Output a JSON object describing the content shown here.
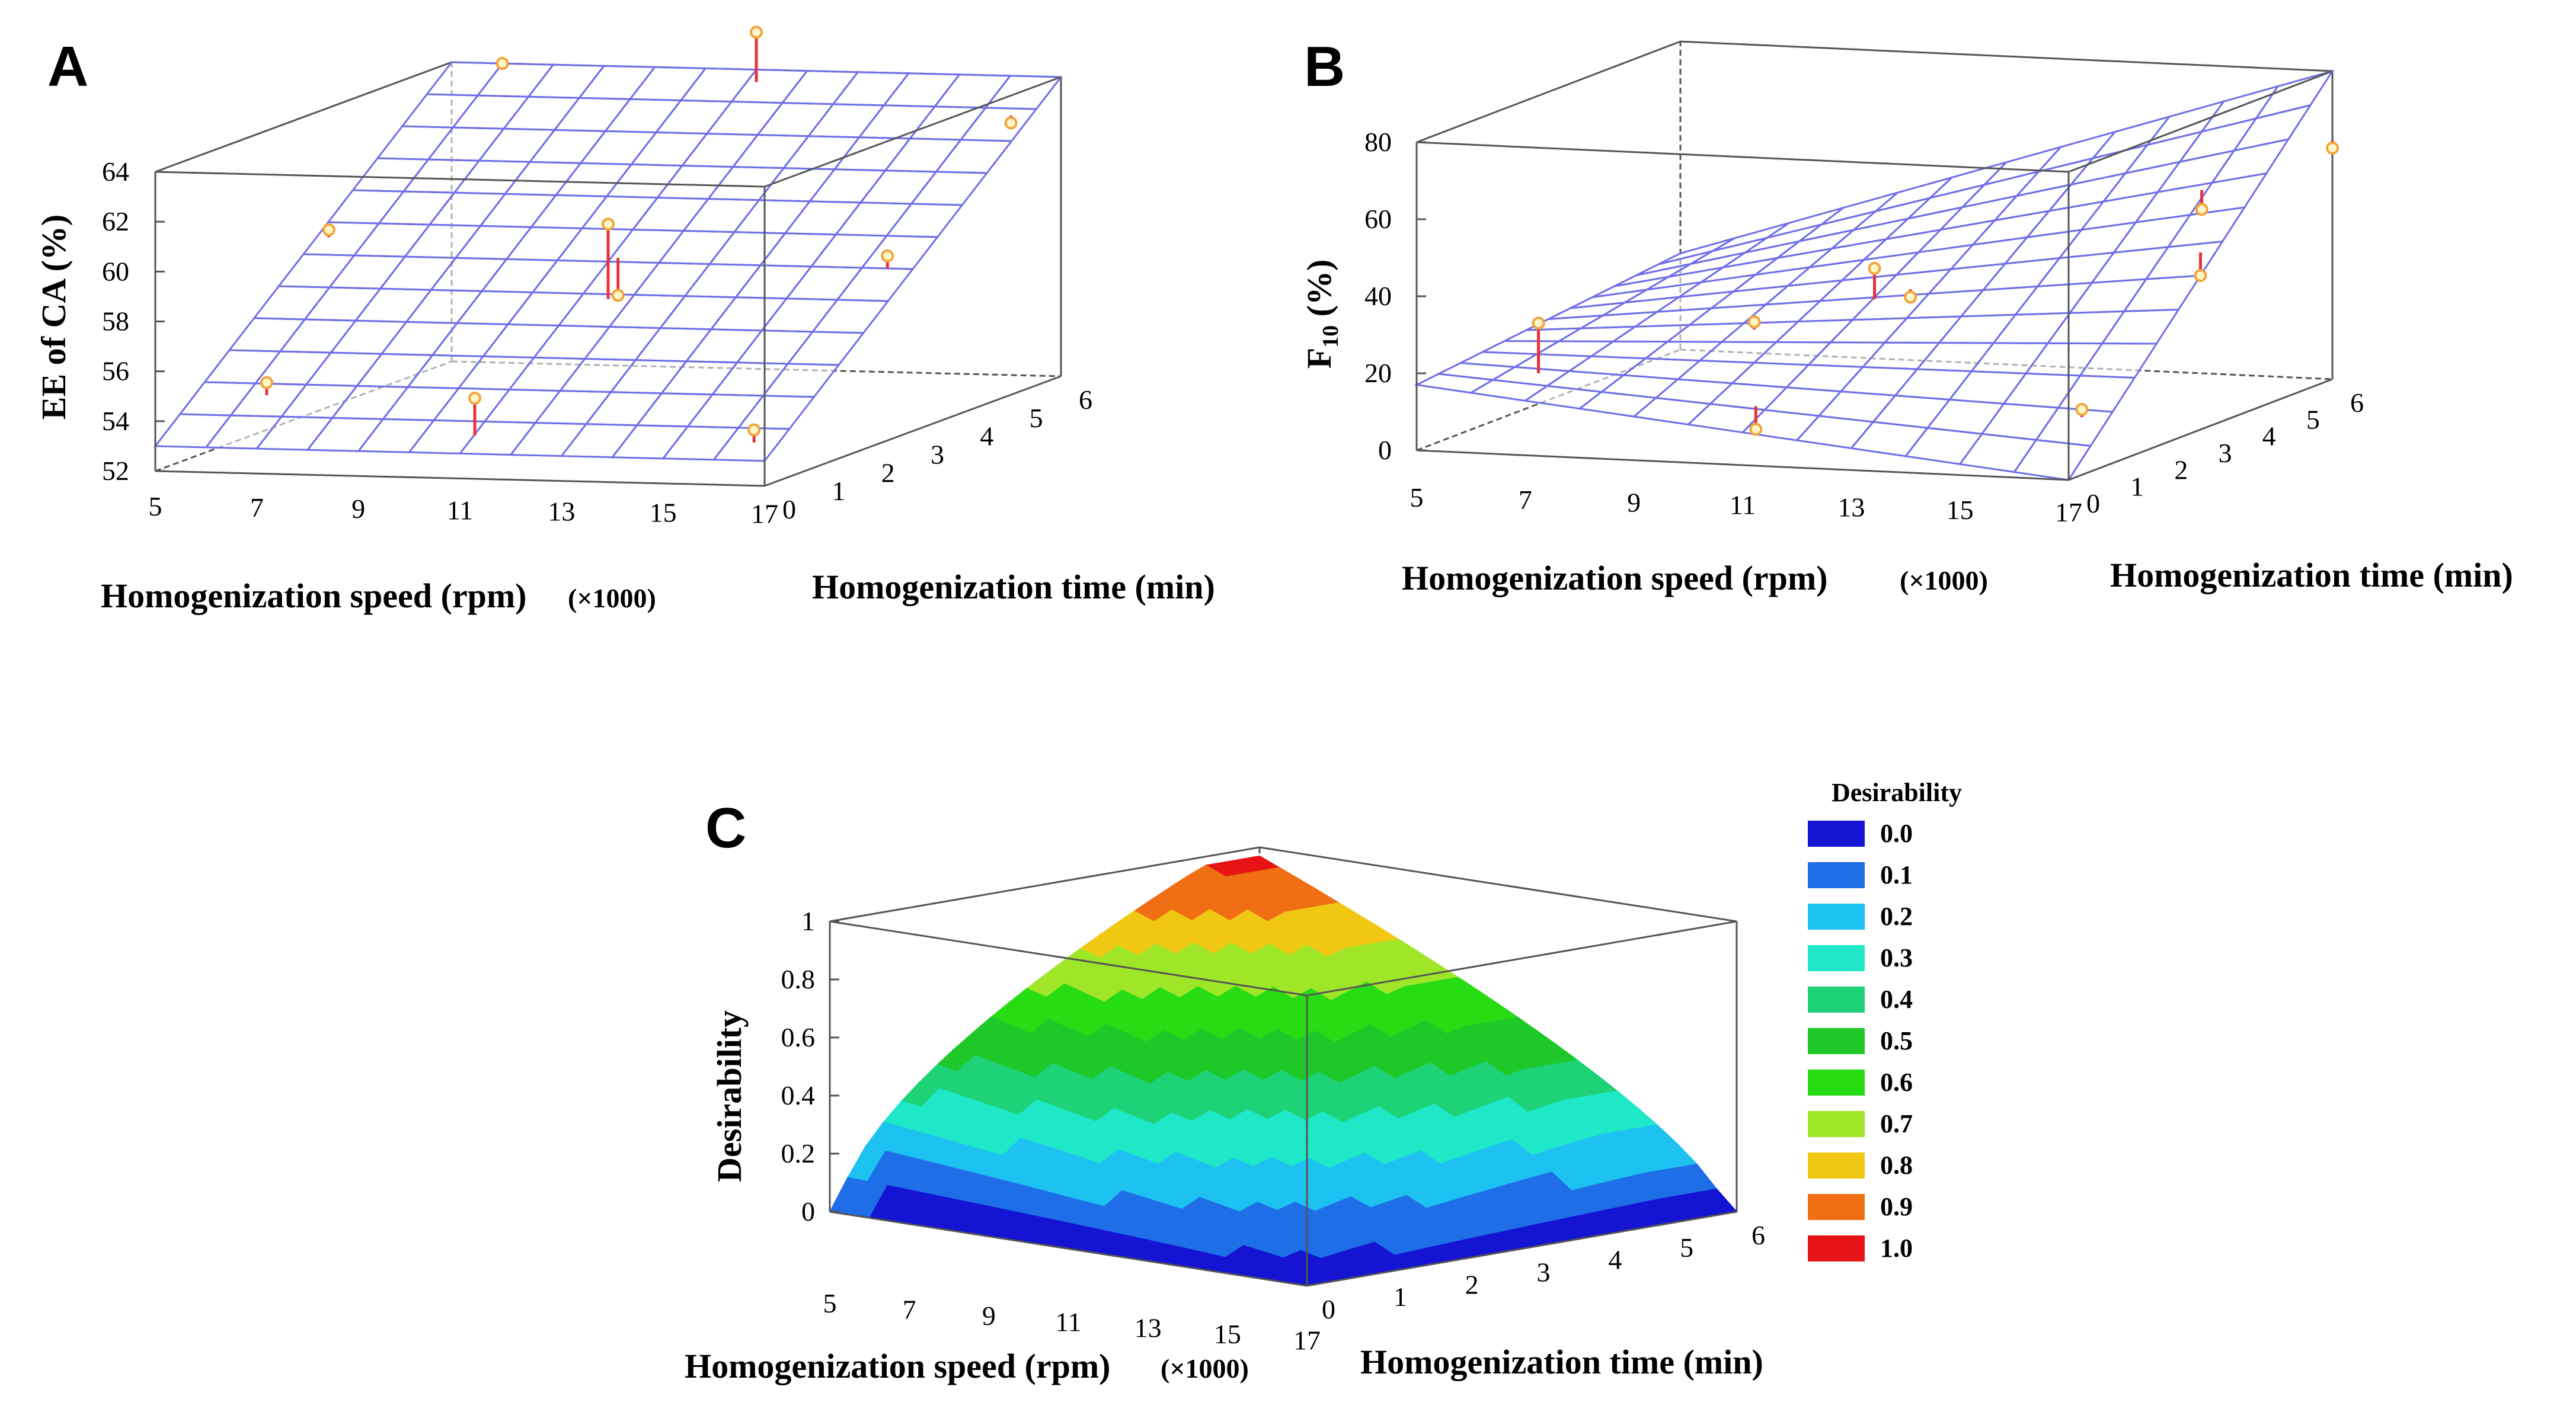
{
  "chart_data": [
    {
      "panel": "A",
      "type": "surface",
      "xlabel": "Homogenization speed (rpm)",
      "x_multiplier": "(×1000)",
      "ylabel": "Homogenization time (min)",
      "zlabel": "EE of CA (%)",
      "x_ticks": [
        "5",
        "7",
        "9",
        "11",
        "13",
        "15",
        "17"
      ],
      "y_ticks": [
        "0",
        "1",
        "2",
        "3",
        "4",
        "5",
        "6"
      ],
      "z_ticks": [
        "52",
        "54",
        "56",
        "58",
        "60",
        "62",
        "64"
      ],
      "xlim": [
        5,
        17
      ],
      "ylim": [
        0,
        6
      ],
      "zlim": [
        52,
        64
      ],
      "surface_corners": {
        "x5_y0": 53.0,
        "x17_y0": 53.0,
        "x5_y6": 64.0,
        "x17_y6": 64.0
      },
      "points": [
        {
          "x": 7,
          "y": 0.2,
          "observed": 55.5,
          "predicted": 55.0
        },
        {
          "x": 5.5,
          "y": 3,
          "observed": 59.5,
          "predicted": 59.2
        },
        {
          "x": 11,
          "y": 0.3,
          "observed": 55.0,
          "predicted": 53.5
        },
        {
          "x": 11,
          "y": 3,
          "observed": 60.0,
          "predicted": 57.0
        },
        {
          "x": 11,
          "y": 3.2,
          "observed": 57.0,
          "predicted": 58.5
        },
        {
          "x": 6,
          "y": 6,
          "observed": 64.0,
          "predicted": 64.2
        },
        {
          "x": 11,
          "y": 6,
          "observed": 65.5,
          "predicted": 63.5
        },
        {
          "x": 16.5,
          "y": 0.3,
          "observed": 54.0,
          "predicted": 53.5
        },
        {
          "x": 16.5,
          "y": 3,
          "observed": 59.0,
          "predicted": 58.5
        },
        {
          "x": 16.5,
          "y": 5.5,
          "observed": 62.5,
          "predicted": 62.8
        }
      ],
      "surface_color": "#6f6fe8",
      "point_color": "#f2a33a",
      "residual_color": "#e8323a"
    },
    {
      "panel": "B",
      "type": "surface",
      "xlabel": "Homogenization speed (rpm)",
      "x_multiplier": "(×1000)",
      "ylabel": "Homogenization time (min)",
      "zlabel_main": "F",
      "zlabel_sub": "10",
      "zlabel_rest": " (%)",
      "x_ticks": [
        "5",
        "7",
        "9",
        "11",
        "13",
        "15",
        "17"
      ],
      "y_ticks": [
        "0",
        "1",
        "2",
        "3",
        "4",
        "5",
        "6"
      ],
      "z_ticks": [
        "0",
        "20",
        "40",
        "60",
        "80"
      ],
      "xlim": [
        5,
        17
      ],
      "ylim": [
        0,
        6
      ],
      "zlim": [
        0,
        80
      ],
      "surface_corners": {
        "x5_y0": 17,
        "x17_y0": 0,
        "x5_y6": 25,
        "x17_y6": 80
      },
      "points": [
        {
          "x": 7,
          "y": 0.3,
          "observed": 33,
          "predicted": 20
        },
        {
          "x": 10,
          "y": 1.5,
          "observed": 30,
          "predicted": 28
        },
        {
          "x": 11,
          "y": 0.3,
          "observed": 8,
          "predicted": 14
        },
        {
          "x": 11,
          "y": 3,
          "observed": 38,
          "predicted": 30
        },
        {
          "x": 11.5,
          "y": 3.2,
          "observed": 30,
          "predicted": 32
        },
        {
          "x": 15,
          "y": 5.5,
          "observed": 45,
          "predicted": 50
        },
        {
          "x": 17,
          "y": 0.3,
          "observed": 17,
          "predicted": 15
        },
        {
          "x": 17,
          "y": 3,
          "observed": 40,
          "predicted": 46
        },
        {
          "x": 17,
          "y": 6,
          "observed": 60,
          "predicted": 62
        }
      ],
      "surface_color": "#6f6fe8",
      "point_color": "#f2a33a",
      "residual_color": "#e8323a"
    },
    {
      "panel": "C",
      "type": "surface",
      "xlabel": "Homogenization speed (rpm)",
      "x_multiplier": "(×1000)",
      "ylabel": "Homogenization time (min)",
      "zlabel": "Desirability",
      "x_ticks": [
        "5",
        "7",
        "9",
        "11",
        "13",
        "15",
        "17"
      ],
      "y_ticks": [
        "0",
        "1",
        "2",
        "3",
        "4",
        "5",
        "6"
      ],
      "z_ticks": [
        "0",
        "0.2",
        "0.4",
        "0.6",
        "0.8",
        "1"
      ],
      "xlim": [
        5,
        17
      ],
      "ylim": [
        0,
        6
      ],
      "zlim": [
        0,
        1
      ],
      "peak": {
        "x": 5,
        "y": 6,
        "z": 0.97
      },
      "legend_title": "Desirability",
      "legend": [
        {
          "label": "0.0",
          "color": "#1414d2"
        },
        {
          "label": "0.1",
          "color": "#1e6ee8"
        },
        {
          "label": "0.2",
          "color": "#1ec2f0"
        },
        {
          "label": "0.3",
          "color": "#1ee8c8"
        },
        {
          "label": "0.4",
          "color": "#1ed278"
        },
        {
          "label": "0.5",
          "color": "#1ec828"
        },
        {
          "label": "0.6",
          "color": "#28dc14"
        },
        {
          "label": "0.7",
          "color": "#a0e628"
        },
        {
          "label": "0.8",
          "color": "#f0c814"
        },
        {
          "label": "0.9",
          "color": "#f06e14"
        },
        {
          "label": "1.0",
          "color": "#e61414"
        }
      ]
    }
  ]
}
